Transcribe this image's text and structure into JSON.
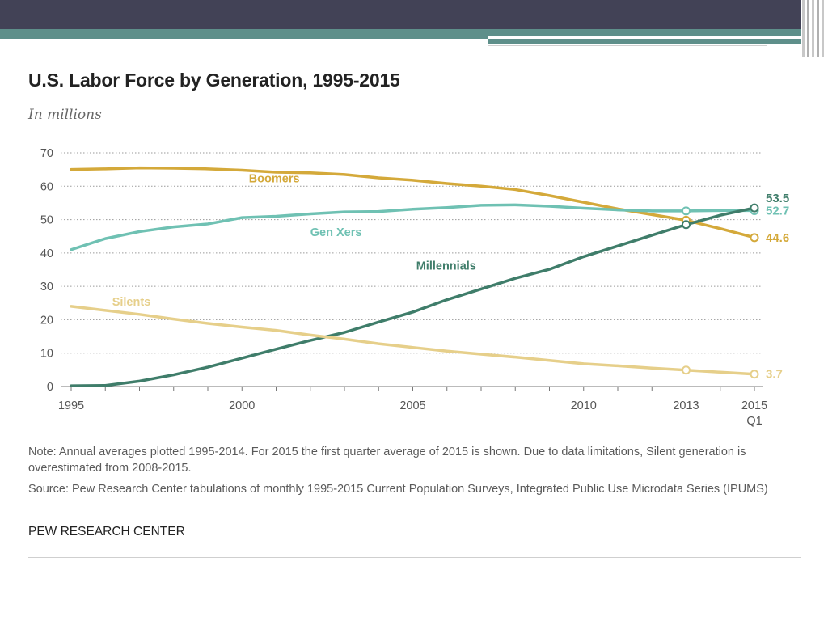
{
  "slide": {
    "colors": {
      "dark_band": "#424256",
      "teal_band": "#5e8f8a"
    }
  },
  "chart": {
    "title": "U.S. Labor Force by Generation, 1995-2015",
    "subtitle": "In millions",
    "note": "Note: Annual averages plotted 1995-2014. For 2015 the first quarter average of 2015 is shown. Due to data limitations, Silent generation is overestimated from 2008-2015.",
    "source": "Source: Pew Research Center tabulations of monthly 1995-2015 Current Population Surveys, Integrated Public Use Microdata Series (IPUMS)",
    "brand": "PEW RESEARCH CENTER"
  },
  "chart_data": {
    "type": "line",
    "title": "U.S. Labor Force by Generation, 1995-2015",
    "subtitle": "In millions",
    "xlabel": "",
    "ylabel": "In millions",
    "x": [
      1995,
      1996,
      1997,
      1998,
      1999,
      2000,
      2001,
      2002,
      2003,
      2004,
      2005,
      2006,
      2007,
      2008,
      2009,
      2010,
      2011,
      2012,
      2013,
      2014,
      2015
    ],
    "xlim": [
      1995,
      2015
    ],
    "ylim": [
      0,
      70
    ],
    "yticks": [
      "0",
      "10",
      "20",
      "30",
      "40",
      "50",
      "60",
      "70"
    ],
    "xtick_labels": [
      {
        "x": 1995,
        "label": "1995"
      },
      {
        "x": 2000,
        "label": "2000"
      },
      {
        "x": 2005,
        "label": "2005"
      },
      {
        "x": 2010,
        "label": "2010"
      },
      {
        "x": 2013,
        "label": "2013"
      },
      {
        "x": 2015,
        "label": "2015",
        "sublabel": "Q1"
      }
    ],
    "grid": "horizontal dotted",
    "series": [
      {
        "name": "Boomers",
        "color": "#d4a93a",
        "values": [
          65.0,
          65.2,
          65.5,
          65.4,
          65.2,
          64.8,
          64.2,
          64.0,
          63.5,
          62.5,
          61.8,
          60.8,
          60.0,
          59.0,
          57.2,
          55.2,
          53.2,
          51.5,
          49.8,
          47.3,
          44.6
        ],
        "label_x": 2000.2,
        "label_y": 61.2,
        "markers": [
          {
            "x": 2013,
            "y": 49.8
          },
          {
            "x": 2015,
            "y": 44.6
          }
        ],
        "end_label": "44.6"
      },
      {
        "name": "Gen Xers",
        "color": "#6fc1b3",
        "values": [
          41.0,
          44.3,
          46.4,
          47.8,
          48.7,
          50.6,
          51.0,
          51.7,
          52.3,
          52.4,
          53.1,
          53.6,
          54.3,
          54.4,
          54.0,
          53.4,
          52.9,
          52.6,
          52.6,
          52.7,
          52.7
        ],
        "label_x": 2002.0,
        "label_y": 45.0,
        "markers": [
          {
            "x": 2013,
            "y": 52.6
          },
          {
            "x": 2015,
            "y": 52.7
          }
        ],
        "end_label": "52.7"
      },
      {
        "name": "Millennials",
        "color": "#3f7d6a",
        "values": [
          0.2,
          0.3,
          1.6,
          3.5,
          5.8,
          8.5,
          11.2,
          13.8,
          16.2,
          19.3,
          22.3,
          26.0,
          29.2,
          32.4,
          35.1,
          38.9,
          42.1,
          45.3,
          48.5,
          51.3,
          53.5
        ],
        "label_x": 2005.1,
        "label_y": 35.0,
        "markers": [
          {
            "x": 2013,
            "y": 48.5
          },
          {
            "x": 2015,
            "y": 53.5
          }
        ],
        "end_label": "53.5"
      },
      {
        "name": "Silents",
        "color": "#e6cf8a",
        "values": [
          24.0,
          22.8,
          21.6,
          20.2,
          18.9,
          17.8,
          16.8,
          15.4,
          14.2,
          12.8,
          11.7,
          10.6,
          9.7,
          8.8,
          7.8,
          6.8,
          6.2,
          5.5,
          4.9,
          4.3,
          3.7
        ],
        "label_x": 1996.2,
        "label_y": 24.2,
        "markers": [
          {
            "x": 2013,
            "y": 4.9
          },
          {
            "x": 2015,
            "y": 3.7
          }
        ],
        "end_label": "3.7"
      }
    ]
  }
}
